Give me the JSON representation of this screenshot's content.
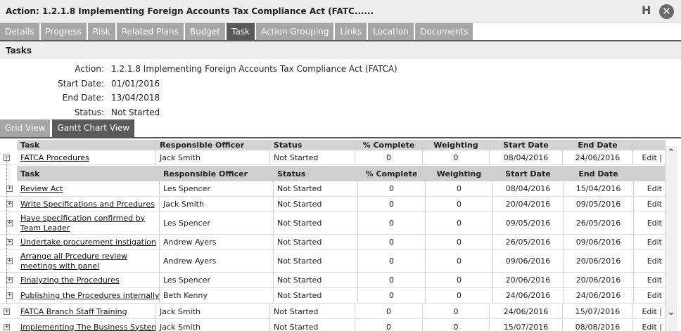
{
  "window": {
    "title": "Action: 1.2.1.8 Implementing Foreign Accounts Tax Compliance Act (FATC......",
    "help_label": "H",
    "close_label": "✕"
  },
  "tabs": [
    "Details",
    "Progress",
    "Risk",
    "Related Plans",
    "Budget",
    "Task",
    "Action Grouping",
    "Links",
    "Location",
    "Documents"
  ],
  "active_tab": "Task",
  "section_title": "Tasks",
  "info": [
    {
      "label": "Action:",
      "value": "1.2.1.8 Implementing Foreign Accounts Tax Compliance Act (FATCA)"
    },
    {
      "label": "Start Date:",
      "value": "01/01/2016"
    },
    {
      "label": "End Date:",
      "value": "13/04/2018"
    },
    {
      "label": "Status:",
      "value": "Not Started"
    }
  ],
  "view_tabs": [
    "Grid View",
    "Gantt Chart View"
  ],
  "active_view": "Gantt Chart View",
  "columns": [
    "Task",
    "Responsible Officer",
    "Status",
    "% Complete",
    "Weighting",
    "Start Date",
    "End Date"
  ],
  "edit_label": "Edit",
  "parent_rows": [
    {
      "task": "FATCA Procedures",
      "officer": "Jack Smith",
      "status": "Not Started",
      "pct": "0",
      "weight": "0",
      "start": "08/04/2016",
      "end": "24/06/2016",
      "edit": "Edit |",
      "expanded": true
    },
    {
      "task": "FATCA Branch Staff Training",
      "officer": "Jack Smith",
      "status": "Not Started",
      "pct": "0",
      "weight": "0",
      "start": "24/06/2016",
      "end": "15/07/2016",
      "edit": "Edit |",
      "expanded": false
    },
    {
      "task": "Implementing The Business System",
      "officer": "Jack Smith",
      "status": "Not Started",
      "pct": "0",
      "weight": "0",
      "start": "15/07/2016",
      "end": "08/08/2016",
      "edit": "Edit |",
      "expanded": false
    }
  ],
  "child_rows": [
    {
      "task": "Review Act",
      "officer": "Les Spencer",
      "status": "Not Started",
      "pct": "0",
      "weight": "0",
      "start": "08/04/2016",
      "end": "15/04/2016",
      "edit": "Edit",
      "tall": false
    },
    {
      "task": "Write Specifications and Prcedures",
      "officer": "Jack Smith",
      "status": "Not Started",
      "pct": "0",
      "weight": "0",
      "start": "20/04/2016",
      "end": "09/05/2016",
      "edit": "Edit",
      "tall": false
    },
    {
      "task": "Have specification confirmed by Team Leader",
      "officer": "Les Spencer",
      "status": "Not Started",
      "pct": "0",
      "weight": "0",
      "start": "09/05/2016",
      "end": "26/05/2016",
      "edit": "Edit",
      "tall": true
    },
    {
      "task": "Undertake procurement instigation",
      "officer": "Andrew Ayers",
      "status": "Not Started",
      "pct": "0",
      "weight": "0",
      "start": "26/05/2016",
      "end": "09/06/2016",
      "edit": "Edit",
      "tall": false
    },
    {
      "task": "Arrange all Prcedure review meetings with panel",
      "officer": "Andrew Ayers",
      "status": "Not Started",
      "pct": "0",
      "weight": "0",
      "start": "09/06/2016",
      "end": "20/06/2016",
      "edit": "Edit",
      "tall": true
    },
    {
      "task": "Finalyzing the Procedures",
      "officer": "Les Spencer",
      "status": "Not Started",
      "pct": "0",
      "weight": "0",
      "start": "20/06/2016",
      "end": "20/06/2016",
      "edit": "Edit",
      "tall": false
    },
    {
      "task": "Publishing the Procedures internally",
      "officer": "Beth Kenny",
      "status": "Not Started",
      "pct": "0",
      "weight": "0",
      "start": "24/06/2016",
      "end": "24/06/2016",
      "edit": "Edit",
      "tall": false
    }
  ],
  "scroll": {
    "up_label": "⌃",
    "down_label": "⌄"
  }
}
